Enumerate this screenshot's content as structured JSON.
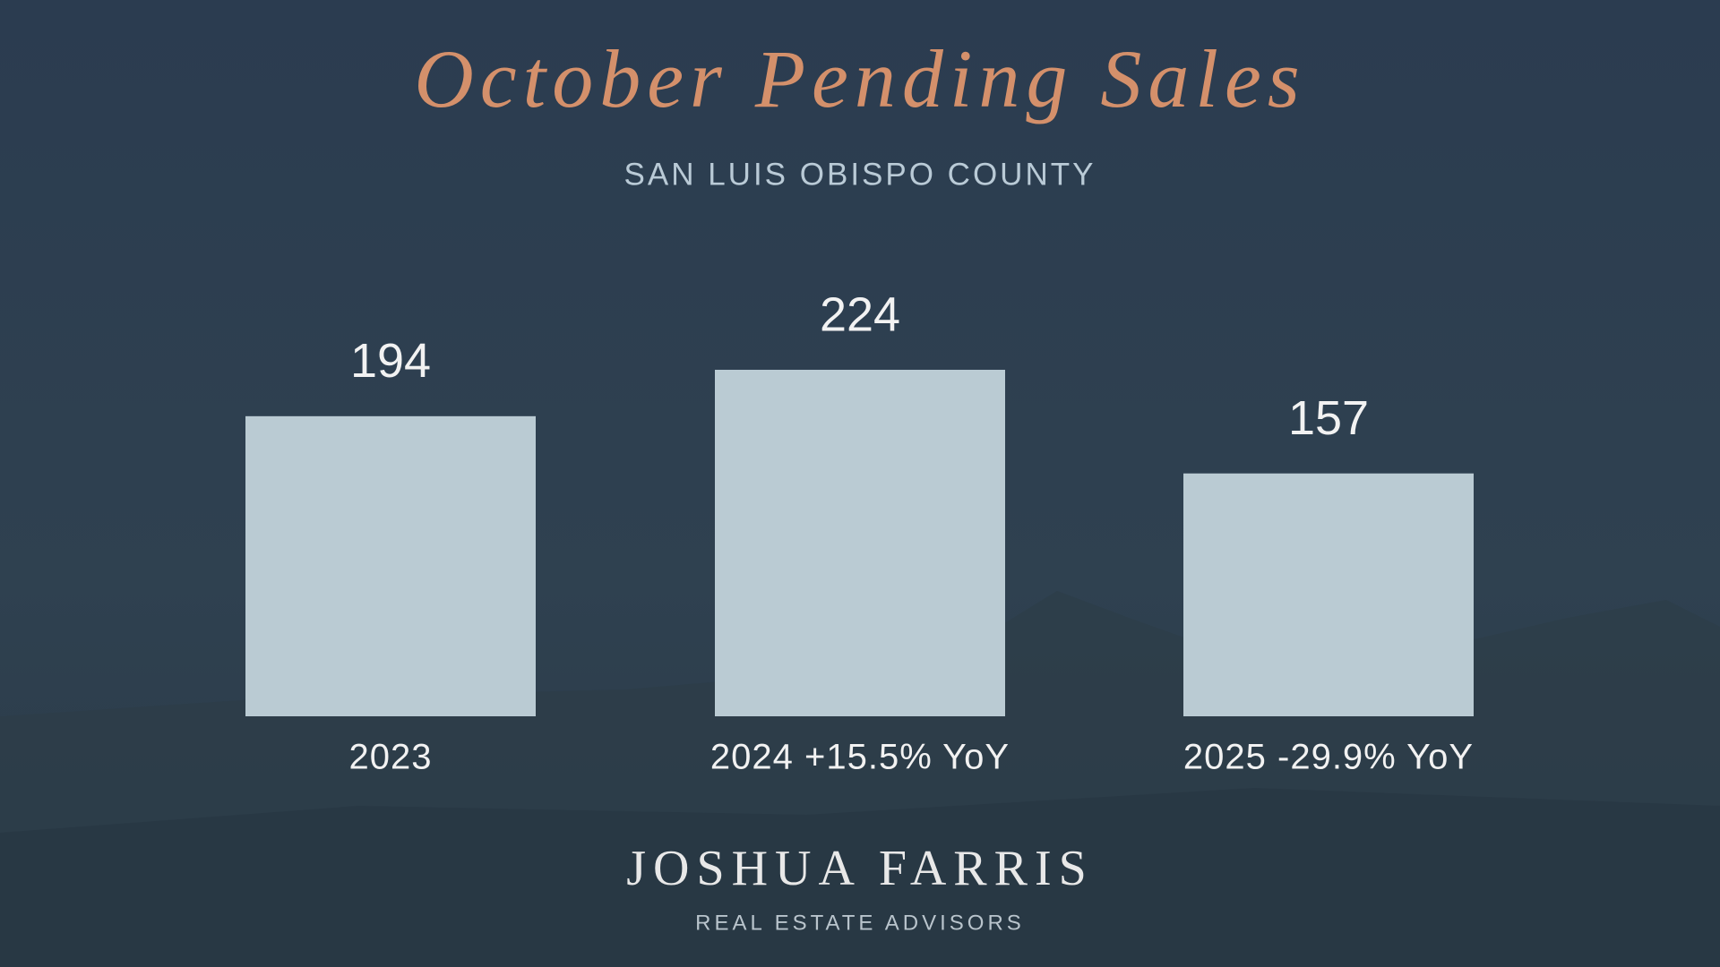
{
  "chart_data": {
    "type": "bar",
    "title": "October Pending Sales",
    "subtitle": "SAN LUIS OBISPO COUNTY",
    "categories": [
      "2023",
      "2024 +15.5% YoY",
      "2025 -29.9% YoY"
    ],
    "values": [
      194,
      224,
      157
    ],
    "color": "#bacbd3"
  },
  "branding": {
    "name": "JOSHUA FARRIS",
    "tagline": "REAL ESTATE ADVISORS"
  }
}
